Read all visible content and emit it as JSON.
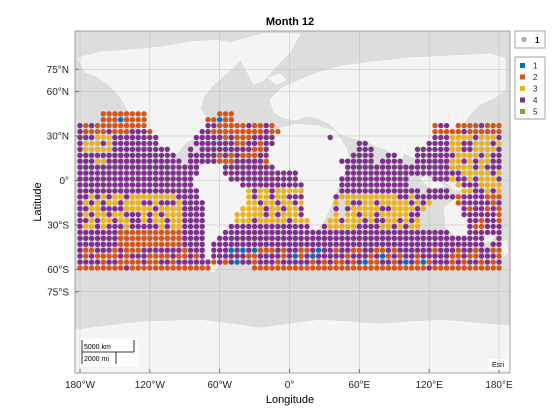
{
  "chart_data": {
    "type": "scatter",
    "subtype": "geographic-scatter",
    "title": "Month 12",
    "xlabel": "Longitude",
    "ylabel": "Latitude",
    "x_ticks": [
      "180°W",
      "120°W",
      "60°W",
      "0°",
      "60°E",
      "120°E",
      "180°E"
    ],
    "y_ticks": [
      "75°N",
      "60°N",
      "30°N",
      "0°",
      "30°S",
      "60°S",
      "75°S"
    ],
    "basemap": "Esri light gray canvas",
    "attribution": "Esri",
    "scalebar": {
      "km_label": "5000 km",
      "mi_label": "2000 mi"
    },
    "legend_top": {
      "label": "1",
      "color": "#b0b0b0"
    },
    "legend": [
      {
        "label": "1",
        "color": "#0072BD"
      },
      {
        "label": "2",
        "color": "#D95319"
      },
      {
        "label": "3",
        "color": "#EDB120"
      },
      {
        "label": "4",
        "color": "#7E2F8E"
      },
      {
        "label": "5",
        "color": "#77AC30"
      }
    ],
    "grid": true,
    "lon_range": [
      -180,
      180
    ],
    "lat_range": [
      -62,
      45
    ],
    "lon_step": 5,
    "lat_step": 4,
    "point_note": "Ocean grid points from 45°N to 62°S; colour = class"
  }
}
